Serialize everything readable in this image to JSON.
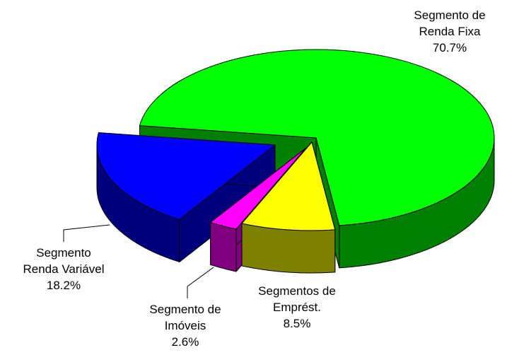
{
  "chart_data": {
    "type": "pie3d",
    "categories": [
      "Segmento de Renda Fixa",
      "Segmentos de Emprést.",
      "Segmento de Imóveis",
      "Segmento Renda Variável"
    ],
    "values": [
      70.7,
      8.5,
      2.6,
      18.2
    ],
    "value_labels": [
      "70.7%",
      "8.5%",
      "2.6%",
      "18.2%"
    ],
    "colors": [
      "#00ff00",
      "#ffff00",
      "#ff00ff",
      "#0000ff"
    ]
  }
}
